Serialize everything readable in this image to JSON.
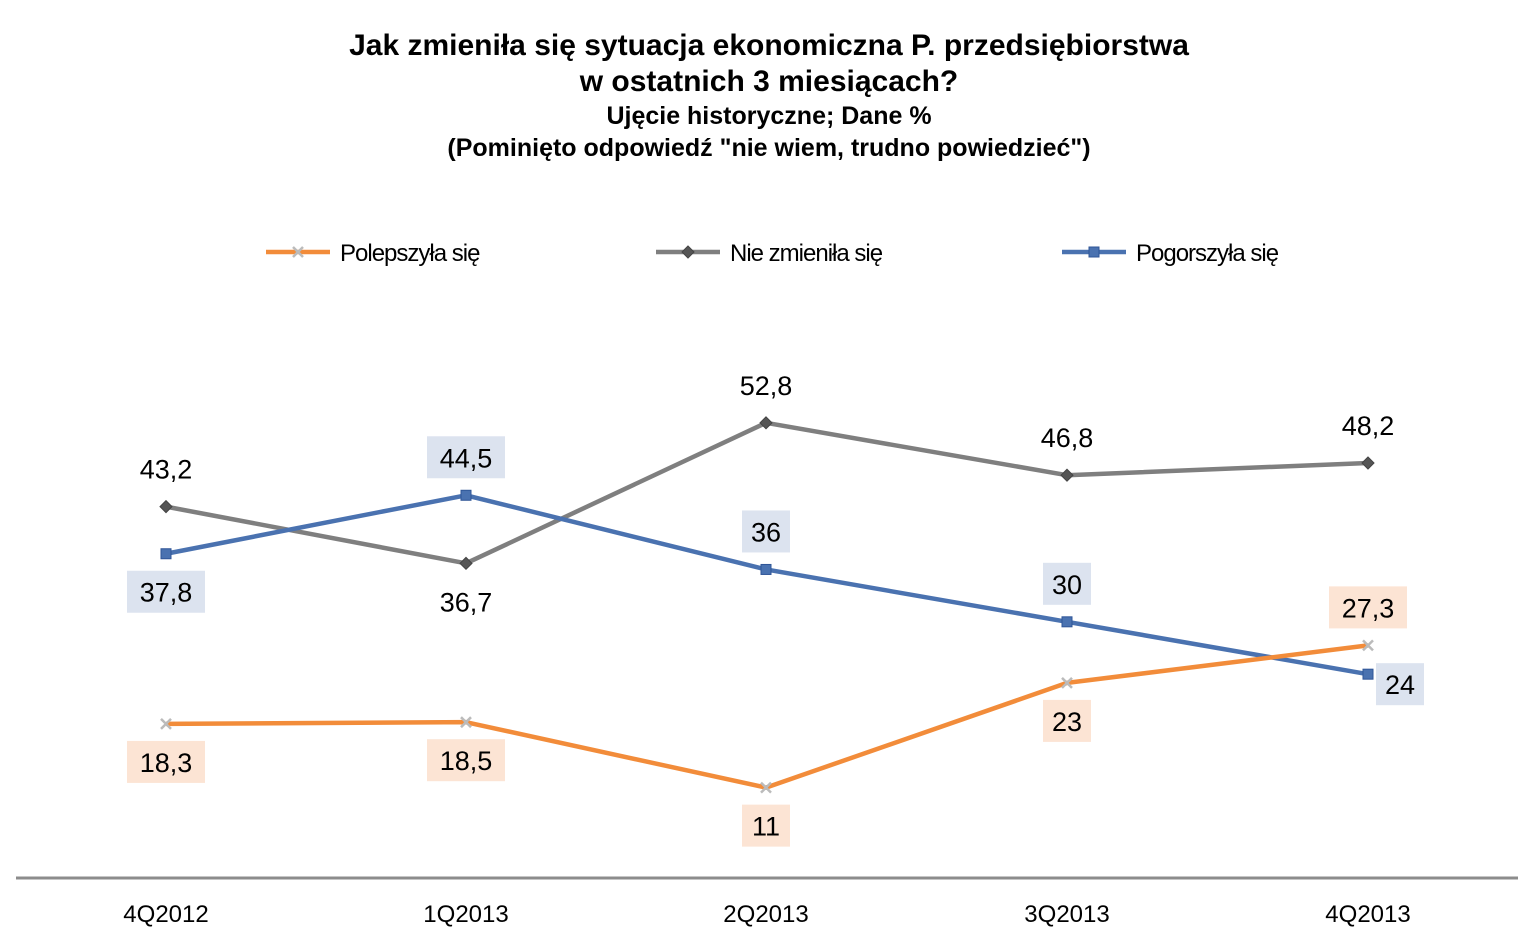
{
  "chart_data": {
    "type": "line",
    "title_line1": "Jak zmieniła się sytuacja ekonomiczna P. przedsiębiorstwa",
    "title_line2": "w ostatnich 3 miesiącach?",
    "subtitle_line1": "Ujęcie historyczne;  Dane %",
    "subtitle_line2": "(Pominięto odpowiedź  \"nie wiem, trudno powiedzieć\")",
    "categories": [
      "4Q2012",
      "1Q2013",
      "2Q2013",
      "3Q2013",
      "4Q2013"
    ],
    "series": [
      {
        "name": "Polepszyła się",
        "values": [
          18.3,
          18.5,
          11,
          23,
          27.3
        ],
        "labels": [
          "18,3",
          "18,5",
          "11",
          "23",
          "27,3"
        ],
        "color": "#F28C3A",
        "label_bg": "#FCE4D4",
        "marker": "x",
        "label_pos": [
          "below",
          "below",
          "below",
          "below",
          "above"
        ]
      },
      {
        "name": "Nie zmieniła się",
        "values": [
          43.2,
          36.7,
          52.8,
          46.8,
          48.2
        ],
        "labels": [
          "43,2",
          "36,7",
          "52,8",
          "46,8",
          "48,2"
        ],
        "color": "#7F7F7F",
        "label_bg": "",
        "marker": "diamond",
        "label_pos": [
          "above",
          "below",
          "above",
          "above",
          "above"
        ]
      },
      {
        "name": "Pogorszyła się",
        "values": [
          37.8,
          44.5,
          36,
          30,
          24
        ],
        "labels": [
          "37,8",
          "44,5",
          "36",
          "30",
          "24"
        ],
        "color": "#4A72B0",
        "label_bg": "#DCE3EF",
        "marker": "square",
        "label_pos": [
          "below",
          "above",
          "above",
          "above",
          "right"
        ]
      }
    ],
    "ylim": [
      5,
      60
    ],
    "grid": false,
    "legend": "top"
  }
}
